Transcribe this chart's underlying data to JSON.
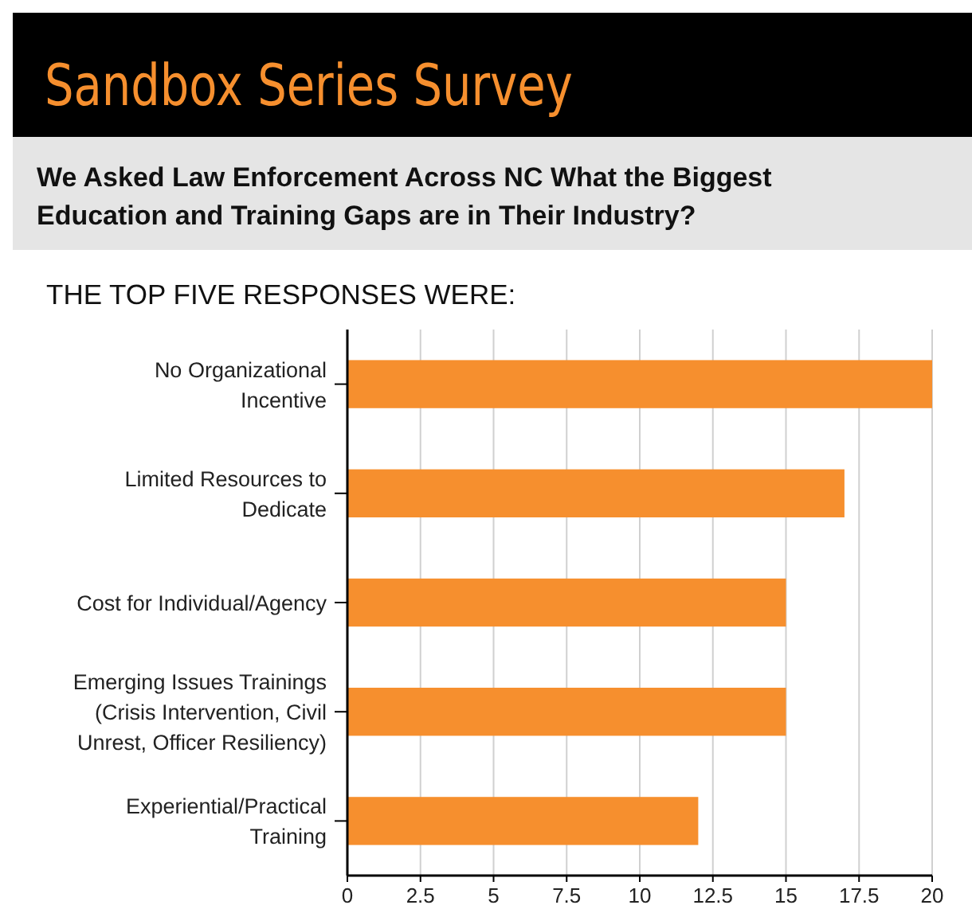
{
  "chart_data": {
    "type": "bar",
    "orientation": "horizontal",
    "title": "Sandbox Series Survey",
    "subtitle": "We Asked Law Enforcement Across NC What the Biggest\nEducation and Training Gaps are in Their Industry?",
    "annotations": [
      "THE TOP FIVE RESPONSES WERE:"
    ],
    "categories": [
      "No Organizational\nIncentive",
      "Limited Resources to\nDedicate",
      "Cost for Individual/Agency",
      "Emerging Issues Trainings\n(Crisis Intervention, Civil\nUnrest, Officer Resiliency)",
      "Experiential/Practical\nTraining"
    ],
    "values": [
      20,
      17,
      15,
      15,
      12
    ],
    "color": "#f68f2e",
    "xlim": [
      0,
      20
    ],
    "xticks": [
      0,
      2.5,
      5,
      7.5,
      10,
      12.5,
      15,
      17.5,
      20
    ],
    "grid": "x"
  }
}
